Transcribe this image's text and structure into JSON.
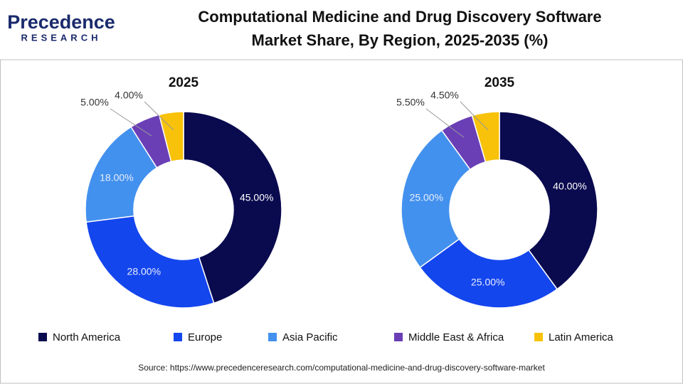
{
  "header": {
    "logo_top": "Precedence",
    "logo_bottom": "RESEARCH",
    "title": [
      "Computational Medicine and Drug Discovery Software",
      "Market Share, By Region, 2025-2035 (%)"
    ]
  },
  "chart_data": [
    {
      "type": "donut",
      "title": "2025",
      "categories": [
        "North America",
        "Europe",
        "Asia Pacific",
        "Middle East & Africa",
        "Latin America"
      ],
      "colors": [
        "#0a0a4f",
        "#1446ee",
        "#4391ee",
        "#6a3fb5",
        "#f8c20a"
      ],
      "values": [
        45,
        28,
        18,
        5,
        4
      ],
      "value_labels": [
        "45.00%",
        "28.00%",
        "18.00%",
        "5.00%",
        "4.00%"
      ]
    },
    {
      "type": "donut",
      "title": "2035",
      "categories": [
        "North America",
        "Europe",
        "Asia Pacific",
        "Middle East & Africa",
        "Latin America"
      ],
      "colors": [
        "#0a0a4f",
        "#1446ee",
        "#4391ee",
        "#6a3fb5",
        "#f8c20a"
      ],
      "values": [
        40,
        25,
        25,
        5.5,
        4.5
      ],
      "value_labels": [
        "40.00%",
        "25.00%",
        "25.00%",
        "5.50%",
        "4.50%"
      ]
    }
  ],
  "source": "Source: https://www.precedenceresearch.com/computational-medicine-and-drug-discovery-software-market"
}
